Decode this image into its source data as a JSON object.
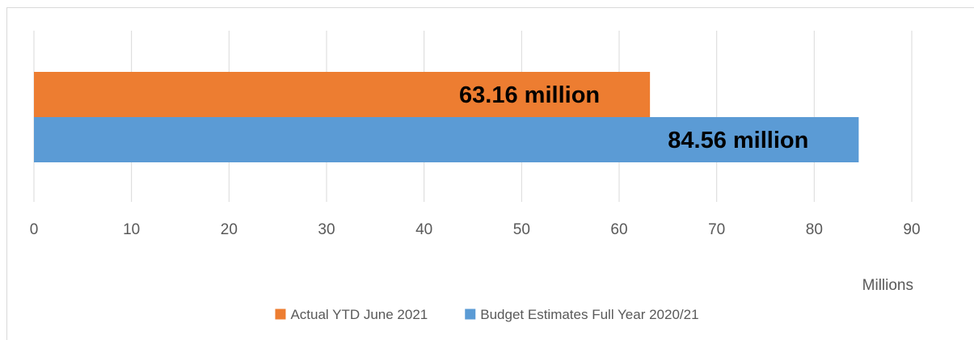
{
  "chart_data": {
    "type": "bar",
    "orientation": "horizontal",
    "categories": [
      ""
    ],
    "series": [
      {
        "name": "Actual YTD June 2021",
        "values": [
          63.16
        ],
        "data_label": "63.16 million",
        "color": "#ED7D31"
      },
      {
        "name": "Budget Estimates Full Year 2020/21",
        "values": [
          84.56
        ],
        "data_label": "84.56 million",
        "color": "#5B9BD5"
      }
    ],
    "xlim": [
      0,
      90
    ],
    "x_ticks": [
      "0",
      "10",
      "20",
      "30",
      "40",
      "50",
      "60",
      "70",
      "80",
      "90"
    ],
    "x_unit_label": "Millions",
    "grid": true,
    "legend_position": "bottom"
  }
}
